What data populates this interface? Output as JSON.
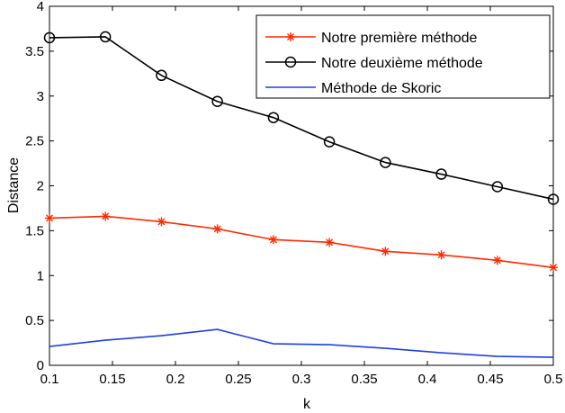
{
  "chart_data": {
    "type": "line",
    "xlabel": "k",
    "ylabel": "Distance",
    "xlim": [
      0.1,
      0.5
    ],
    "ylim": [
      0,
      4
    ],
    "xticks": [
      0.1,
      0.15,
      0.2,
      0.25,
      0.3,
      0.35,
      0.4,
      0.45,
      0.5
    ],
    "xtick_labels": [
      "0.1",
      "0.15",
      "0.2",
      "0.25",
      "0.3",
      "0.35",
      "0.4",
      "0.45",
      "0.5"
    ],
    "yticks": [
      0,
      0.5,
      1,
      1.5,
      2,
      2.5,
      3,
      3.5,
      4
    ],
    "ytick_labels": [
      "0",
      "0.5",
      "1",
      "1.5",
      "2",
      "2.5",
      "3",
      "3.5",
      "4"
    ],
    "grid": false,
    "legend_position": "top-right",
    "x": [
      0.1,
      0.1444,
      0.1889,
      0.2333,
      0.2778,
      0.3222,
      0.3667,
      0.4111,
      0.4556,
      0.5
    ],
    "series": [
      {
        "name": "Notre première méthode",
        "color": "#ff2a00",
        "marker": "asterisk",
        "values": [
          1.64,
          1.66,
          1.6,
          1.52,
          1.4,
          1.37,
          1.27,
          1.23,
          1.17,
          1.09
        ]
      },
      {
        "name": "Notre deuxième méthode",
        "color": "#000000",
        "marker": "circle",
        "values": [
          3.65,
          3.66,
          3.23,
          2.94,
          2.76,
          2.49,
          2.26,
          2.13,
          1.99,
          1.85
        ]
      },
      {
        "name": "Méthode de Skoric",
        "color": "#1f3fe0",
        "marker": "none",
        "values": [
          0.21,
          0.28,
          0.33,
          0.4,
          0.24,
          0.23,
          0.19,
          0.14,
          0.1,
          0.09
        ]
      }
    ]
  }
}
